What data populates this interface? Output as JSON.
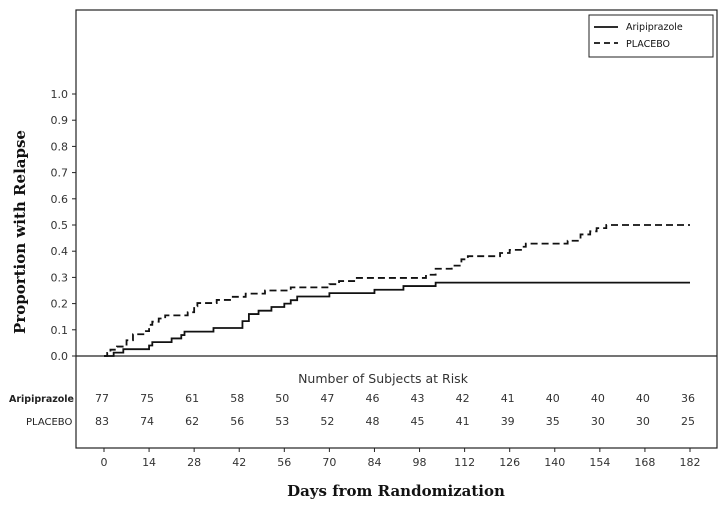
{
  "chart_data": {
    "type": "line",
    "step": true,
    "xlabel": "Days from Randomization",
    "ylabel": "Proportion with Relapse",
    "xlim": [
      0,
      182
    ],
    "ylim": [
      0.0,
      1.0
    ],
    "x_ticks": [
      0,
      14,
      28,
      42,
      56,
      70,
      84,
      98,
      112,
      126,
      140,
      154,
      168,
      182
    ],
    "x_tick_labels": [
      "0",
      "14",
      "28",
      "42",
      "56",
      "70",
      "84",
      "98",
      "112",
      "126",
      "140",
      "154",
      "168",
      "182"
    ],
    "y_ticks": [
      0.0,
      0.1,
      0.2,
      0.3,
      0.4,
      0.5,
      0.6,
      0.7,
      0.8,
      0.9,
      1.0
    ],
    "y_tick_labels": [
      "0.0",
      "0.1",
      "0.2",
      "0.3",
      "0.4",
      "0.5",
      "0.6",
      "0.7",
      "0.8",
      "0.9",
      "1.0"
    ],
    "legend_position": "top-right",
    "series": [
      {
        "name": "Aripiprazole",
        "line_style": "solid",
        "color": "#111111",
        "points": [
          [
            0,
            0.0
          ],
          [
            2,
            0.0
          ],
          [
            3,
            0.013
          ],
          [
            5,
            0.013
          ],
          [
            6,
            0.026
          ],
          [
            10,
            0.026
          ],
          [
            11,
            0.026
          ],
          [
            14,
            0.04
          ],
          [
            15,
            0.053
          ],
          [
            20,
            0.053
          ],
          [
            21,
            0.067
          ],
          [
            24,
            0.08
          ],
          [
            25,
            0.093
          ],
          [
            33,
            0.093
          ],
          [
            34,
            0.107
          ],
          [
            42,
            0.107
          ],
          [
            43,
            0.133
          ],
          [
            45,
            0.16
          ],
          [
            48,
            0.173
          ],
          [
            52,
            0.187
          ],
          [
            56,
            0.2
          ],
          [
            58,
            0.213
          ],
          [
            60,
            0.227
          ],
          [
            70,
            0.24
          ],
          [
            80,
            0.24
          ],
          [
            84,
            0.253
          ],
          [
            90,
            0.253
          ],
          [
            93,
            0.267
          ],
          [
            102,
            0.267
          ],
          [
            103,
            0.28
          ],
          [
            182,
            0.28
          ]
        ]
      },
      {
        "name": "PLACEBO",
        "line_style": "dashed",
        "color": "#111111",
        "points": [
          [
            0,
            0.0
          ],
          [
            1,
            0.012
          ],
          [
            2,
            0.024
          ],
          [
            4,
            0.036
          ],
          [
            6,
            0.036
          ],
          [
            7,
            0.06
          ],
          [
            9,
            0.083
          ],
          [
            13,
            0.095
          ],
          [
            14,
            0.119
          ],
          [
            15,
            0.131
          ],
          [
            17,
            0.143
          ],
          [
            19,
            0.155
          ],
          [
            26,
            0.167
          ],
          [
            28,
            0.19
          ],
          [
            29,
            0.202
          ],
          [
            35,
            0.214
          ],
          [
            40,
            0.226
          ],
          [
            44,
            0.238
          ],
          [
            50,
            0.25
          ],
          [
            58,
            0.262
          ],
          [
            70,
            0.274
          ],
          [
            73,
            0.286
          ],
          [
            78,
            0.298
          ],
          [
            100,
            0.31
          ],
          [
            103,
            0.333
          ],
          [
            108,
            0.345
          ],
          [
            111,
            0.369
          ],
          [
            113,
            0.381
          ],
          [
            121,
            0.381
          ],
          [
            123,
            0.393
          ],
          [
            126,
            0.405
          ],
          [
            130,
            0.417
          ],
          [
            131,
            0.429
          ],
          [
            142,
            0.429
          ],
          [
            144,
            0.44
          ],
          [
            148,
            0.464
          ],
          [
            151,
            0.476
          ],
          [
            153,
            0.488
          ],
          [
            156,
            0.5
          ],
          [
            160,
            0.5
          ],
          [
            182,
            0.5
          ]
        ]
      }
    ],
    "risk_table": {
      "title": "Number of Subjects at Risk",
      "rows": [
        {
          "label": "Aripiprazole",
          "values": [
            "77",
            "75",
            "61",
            "58",
            "50",
            "47",
            "46",
            "43",
            "42",
            "41",
            "40",
            "40",
            "40",
            "36"
          ]
        },
        {
          "label": "PLACEBO",
          "values": [
            "83",
            "74",
            "62",
            "56",
            "53",
            "52",
            "48",
            "45",
            "41",
            "39",
            "35",
            "30",
            "30",
            "25"
          ]
        }
      ]
    }
  }
}
